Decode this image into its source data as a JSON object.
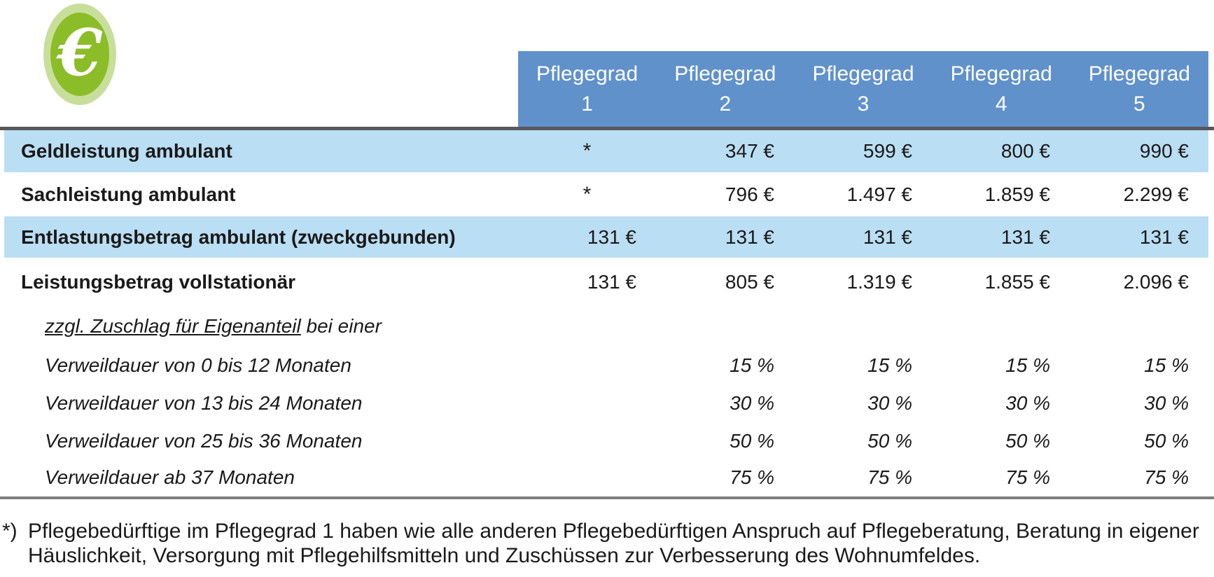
{
  "icon": {
    "glyph": "€"
  },
  "table": {
    "header": {
      "columns": [
        {
          "line1": "Pflegegrad",
          "line2": "1"
        },
        {
          "line1": "Pflegegrad",
          "line2": "2"
        },
        {
          "line1": "Pflegegrad",
          "line2": "3"
        },
        {
          "line1": "Pflegegrad",
          "line2": "4"
        },
        {
          "line1": "Pflegegrad",
          "line2": "5"
        }
      ]
    },
    "rows": [
      {
        "label": "Geldleistung ambulant",
        "values": [
          "*",
          "347 €",
          "599 €",
          "800 €",
          "990 €"
        ]
      },
      {
        "label": "Sachleistung ambulant",
        "values": [
          "*",
          "796 €",
          "1.497 €",
          "1.859 €",
          "2.299 €"
        ]
      },
      {
        "label": "Entlastungsbetrag ambulant (zweckgebunden)",
        "values": [
          "131 €",
          "131 €",
          "131 €",
          "131 €",
          "131 €"
        ]
      },
      {
        "label": "Leistungsbetrag vollstationär",
        "values": [
          "131 €",
          "805 €",
          "1.319 €",
          "1.855 €",
          "2.096 €"
        ]
      },
      {
        "label_underlined": "zzgl. Zuschlag für Eigenanteil",
        "label_rest": " bei einer",
        "values": [
          "",
          "",
          "",
          "",
          ""
        ]
      },
      {
        "label": "Verweildauer von 0 bis 12 Monaten",
        "values": [
          "",
          "15 %",
          "15 %",
          "15 %",
          "15 %"
        ]
      },
      {
        "label": "Verweildauer von 13 bis 24 Monaten",
        "values": [
          "",
          "30 %",
          "30 %",
          "30 %",
          "30 %"
        ]
      },
      {
        "label": "Verweildauer von 25 bis 36 Monaten",
        "values": [
          "",
          "50 %",
          "50 %",
          "50 %",
          "50 %"
        ]
      },
      {
        "label": "Verweildauer ab 37 Monaten",
        "values": [
          "",
          "75 %",
          "75 %",
          "75 %",
          "75 %"
        ]
      }
    ]
  },
  "footnote": {
    "marker": "*)",
    "line1": "Pflegebedürftige im Pflegegrad 1 haben wie alle anderen Pflegebedürftigen Anspruch auf Pflegeberatung, Beratung in eigener",
    "line2": "Häuslichkeit, Versorgung mit Pflegehilfsmitteln und Zuschüssen zur Verbesserung des Wohnumfeldes."
  },
  "colors": {
    "header_blue": "#6191ca",
    "row_highlight_blue": "#badef3",
    "rule_dark": "#58585a",
    "rule_gray": "#7f7f7f",
    "icon_green": "#8bbd28",
    "icon_green_light": "#c8df9c",
    "header_text": "#ffffff",
    "body_text": "#1a1a1a"
  }
}
